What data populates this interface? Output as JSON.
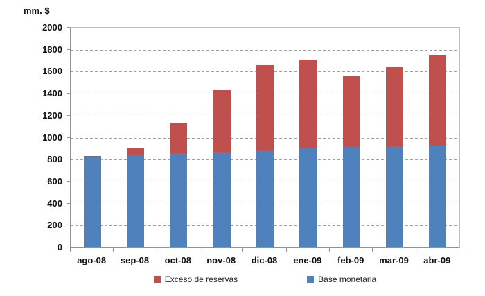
{
  "chart": {
    "unit_label": "mm. $"
  },
  "chart_data": {
    "type": "bar",
    "stacked": true,
    "title": "",
    "ylabel": "mm. $",
    "xlabel": "",
    "categories": [
      "ago-08",
      "sep-08",
      "oct-08",
      "nov-08",
      "dic-08",
      "ene-09",
      "feb-09",
      "mar-09",
      "abr-09"
    ],
    "series": [
      {
        "name": "Base monetaria",
        "color": "#4F81BD",
        "values": [
          825,
          845,
          855,
          870,
          885,
          905,
          915,
          920,
          925
        ]
      },
      {
        "name": "Exceso de reservas",
        "color": "#C0504D",
        "values": [
          10,
          55,
          275,
          560,
          775,
          805,
          645,
          725,
          825
        ]
      }
    ],
    "stack_totals": [
      835,
      900,
      1130,
      1430,
      1660,
      1710,
      1560,
      1645,
      1750
    ],
    "ylim": [
      0,
      2000
    ],
    "ytick_step": 200,
    "grid": "horizontal-dashed",
    "legend_position": "bottom",
    "legend": [
      {
        "label": "Exceso de reservas",
        "color": "#C0504D"
      },
      {
        "label": "Base monetaria",
        "color": "#4F81BD"
      }
    ]
  },
  "colors": {
    "base_monetaria": "#4F81BD",
    "exceso_reservas": "#C0504D",
    "gridline": "#a3a3a3",
    "plot_border": "#b3c1ca",
    "axis_line": "#8498a4",
    "text": "#111111"
  }
}
